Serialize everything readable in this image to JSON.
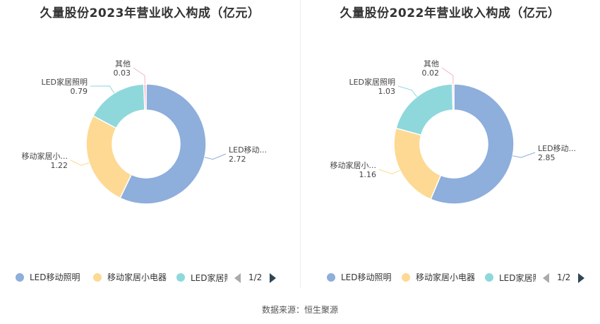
{
  "colors": [
    "#8eaedb",
    "#fdd993",
    "#8ed8dc",
    "#f6b3c6"
  ],
  "source": "数据来源：恒生聚源",
  "chart_data": [
    {
      "type": "pie",
      "title": "久量股份2023年营业收入构成（亿元）",
      "slices": [
        {
          "name": "LED移动照明",
          "label": "LED移动...",
          "value": 2.72,
          "display": "2.72"
        },
        {
          "name": "移动家居小电器",
          "label": "移动家居小...",
          "value": 1.22,
          "display": "1.22"
        },
        {
          "name": "LED家居照明",
          "label": "LED家居照明",
          "value": 0.79,
          "display": "0.79"
        },
        {
          "name": "其他",
          "label": "其他",
          "value": 0.03,
          "display": "0.03"
        }
      ],
      "legend": {
        "items": [
          "LED移动照明",
          "移动家居小电器",
          "LED家居照明"
        ],
        "page": "1/2",
        "placement": "bottom"
      }
    },
    {
      "type": "pie",
      "title": "久量股份2022年营业收入构成（亿元）",
      "slices": [
        {
          "name": "LED移动照明",
          "label": "LED移动...",
          "value": 2.85,
          "display": "2.85"
        },
        {
          "name": "移动家居小电器",
          "label": "移动家居小...",
          "value": 1.16,
          "display": "1.16"
        },
        {
          "name": "LED家居照明",
          "label": "LED家居照明",
          "value": 1.03,
          "display": "1.03"
        },
        {
          "name": "其他",
          "label": "其他",
          "value": 0.02,
          "display": "0.02"
        }
      ],
      "legend": {
        "items": [
          "LED移动照明",
          "移动家居小电器",
          "LED家居照明"
        ],
        "page": "1/2",
        "placement": "bottom"
      }
    }
  ]
}
